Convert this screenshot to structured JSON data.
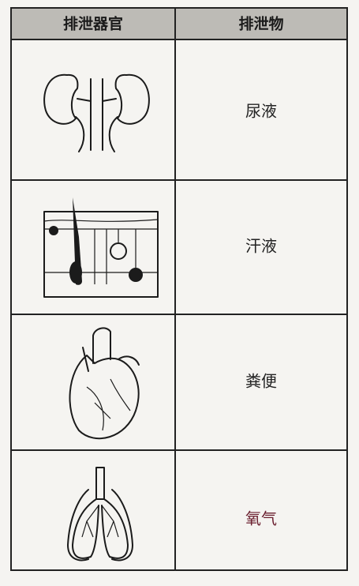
{
  "table": {
    "header": [
      "排泄器官",
      "排泄物"
    ],
    "rows": [
      "尿液",
      "汗液",
      "粪便",
      "氧气"
    ]
  }
}
